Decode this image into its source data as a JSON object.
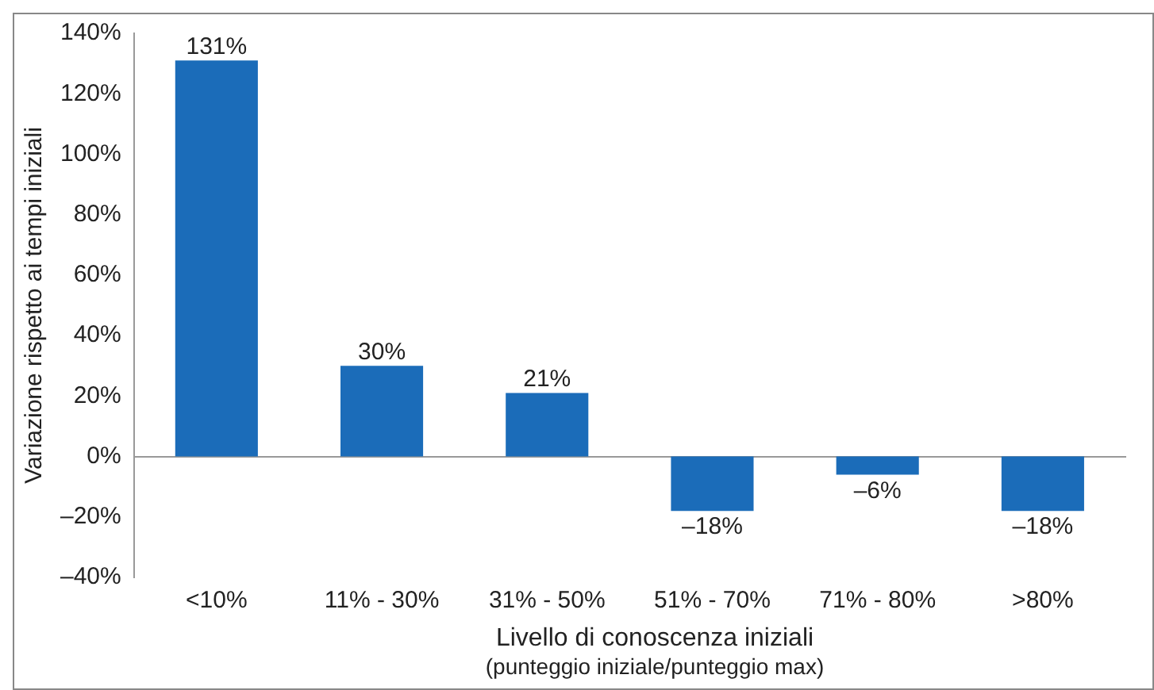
{
  "chart_data": {
    "type": "bar",
    "xlabel": "Livello di conoscenza iniziali",
    "ylabel": "Variazione rispetto ai tempi iniziali",
    "annotations": [
      "(punteggio iniziale/punteggio max)"
    ],
    "categories": [
      "<10%",
      "11% - 30%",
      "31% - 50%",
      "51% - 70%",
      "71% - 80%",
      ">80%"
    ],
    "values": [
      131,
      30,
      21,
      -18,
      -6,
      -18
    ],
    "value_labels": [
      "131%",
      "30%",
      "21%",
      "–18%",
      "–6%",
      "–18%"
    ],
    "color": "#1b6cb9",
    "ylim": [
      -40,
      140
    ],
    "yticks": [
      {
        "value": -40,
        "label": "–40%"
      },
      {
        "value": -20,
        "label": "–20%"
      },
      {
        "value": 0,
        "label": "0%"
      },
      {
        "value": 20,
        "label": "20%"
      },
      {
        "value": 40,
        "label": "40%"
      },
      {
        "value": 60,
        "label": "60%"
      },
      {
        "value": 80,
        "label": "80%"
      },
      {
        "value": 100,
        "label": "100%"
      },
      {
        "value": 120,
        "label": "120%"
      },
      {
        "value": 140,
        "label": "140%"
      }
    ],
    "legend": false
  }
}
